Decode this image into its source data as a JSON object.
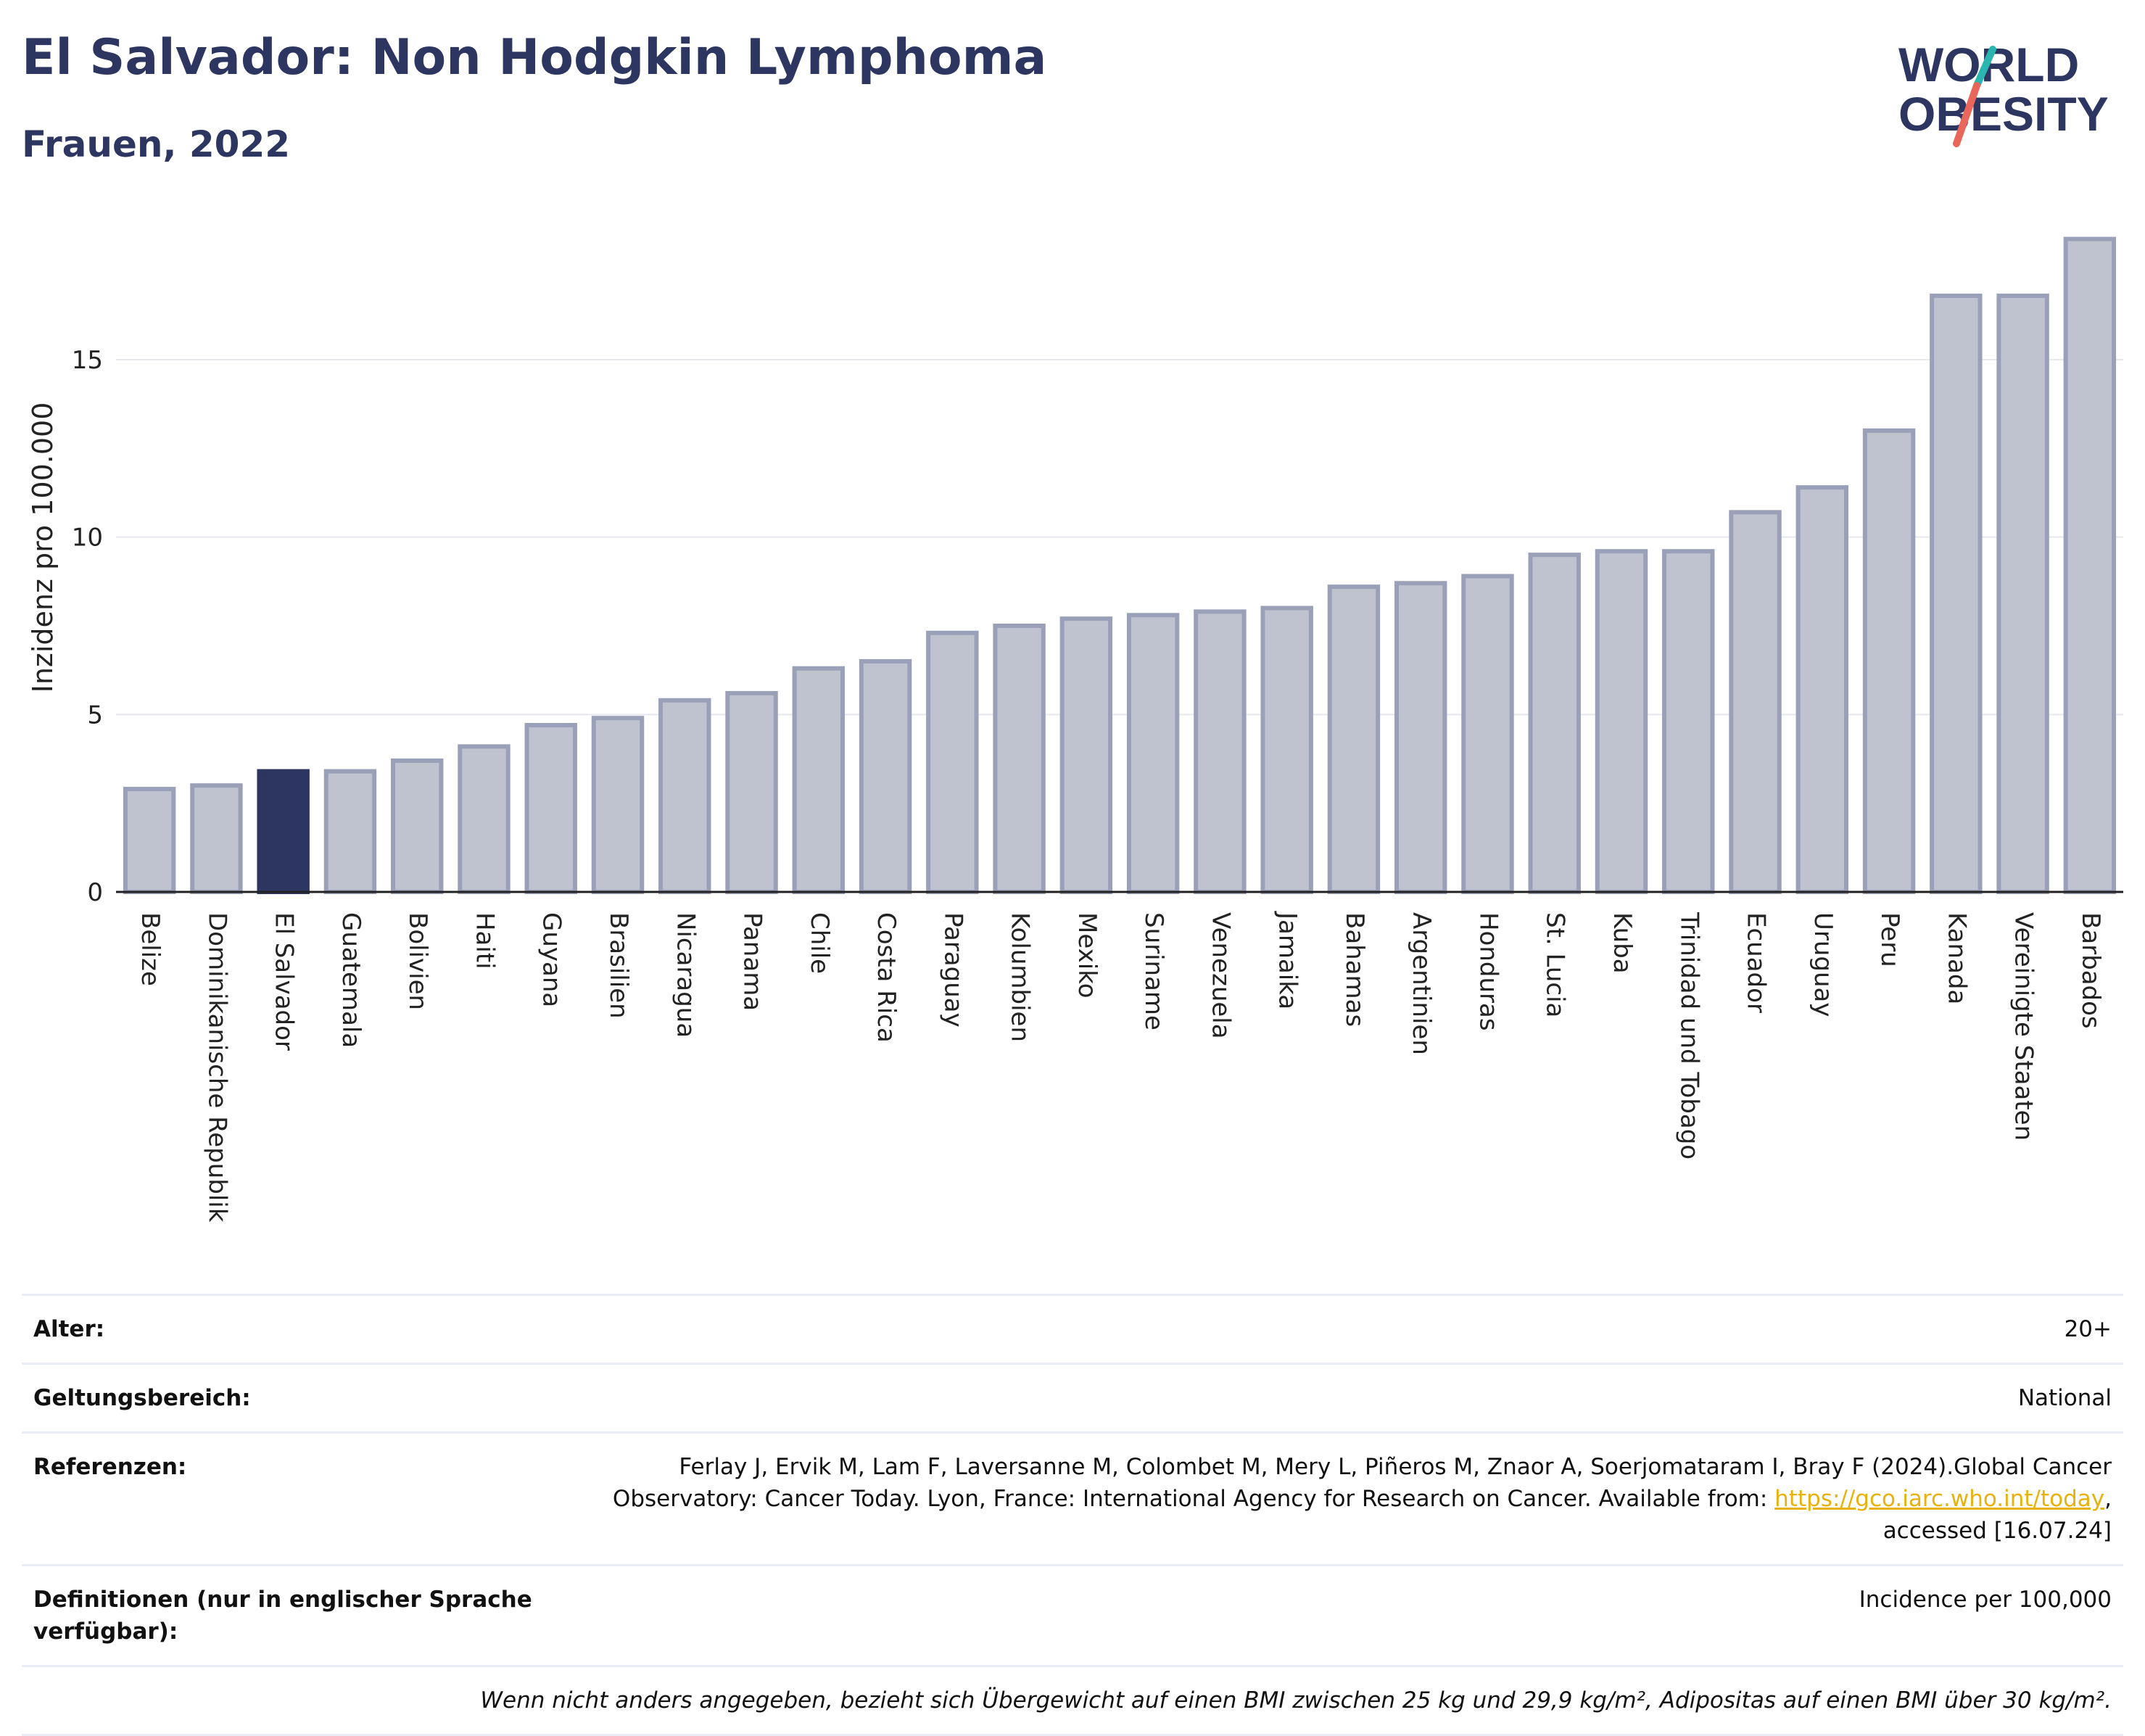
{
  "header": {
    "title": "El Salvador: Non Hodgkin Lymphoma",
    "subtitle": "Frauen, 2022"
  },
  "logo": {
    "line1": "WORLD",
    "line2": "OBESITY",
    "colors": {
      "text": "#2d3561",
      "slash_top": "#2bb5b0",
      "slash_bottom": "#e8665a"
    }
  },
  "chart_data": {
    "type": "bar",
    "ylabel": "Inzidenz pro 100.000",
    "ylim": [
      0,
      18.8
    ],
    "yticks": [
      0,
      5,
      10,
      15
    ],
    "grid": true,
    "highlight": "El Salvador",
    "colors": {
      "bar": "#bfc3d0",
      "bar_border": "#9aa0b8",
      "highlight": "#2d3561"
    },
    "categories": [
      "Belize",
      "Dominikanische Republik",
      "El Salvador",
      "Guatemala",
      "Bolivien",
      "Haiti",
      "Guyana",
      "Brasilien",
      "Nicaragua",
      "Panama",
      "Chile",
      "Costa Rica",
      "Paraguay",
      "Kolumbien",
      "Mexiko",
      "Suriname",
      "Venezuela",
      "Jamaika",
      "Bahamas",
      "Argentinien",
      "Honduras",
      "St. Lucia",
      "Kuba",
      "Trinidad und Tobago",
      "Ecuador",
      "Uruguay",
      "Peru",
      "Kanada",
      "Vereinigte Staaten",
      "Barbados"
    ],
    "values": [
      2.9,
      3.0,
      3.4,
      3.4,
      3.7,
      4.1,
      4.7,
      4.9,
      5.4,
      5.6,
      6.3,
      6.5,
      7.3,
      7.5,
      7.7,
      7.8,
      7.9,
      8.0,
      8.6,
      8.7,
      8.9,
      9.5,
      9.6,
      9.6,
      10.7,
      11.4,
      13.0,
      16.8,
      16.8,
      18.4
    ]
  },
  "meta": {
    "age_label": "Alter:",
    "age_value": "20+",
    "scope_label": "Geltungsbereich:",
    "scope_value": "National",
    "ref_label": "Referenzen:",
    "ref_text_1": "Ferlay J, Ervik M, Lam F, Laversanne M, Colombet M, Mery L, Piñeros M, Znaor A, Soerjomataram I, Bray F (2024).Global Cancer Observatory: Cancer Today. Lyon, France: International Agency for Research on Cancer. Available from: ",
    "ref_link": "https://gco.iarc.who.int/today",
    "ref_text_2": ", accessed [16.07.24]",
    "def_label": "Definitionen (nur in englischer Sprache verfügbar):",
    "def_value": "Incidence per 100,000",
    "note": "Wenn nicht anders angegeben, bezieht sich Übergewicht auf einen BMI zwischen 25 kg und 29,9 kg/m², Adipositas auf einen BMI über 30 kg/m²."
  }
}
